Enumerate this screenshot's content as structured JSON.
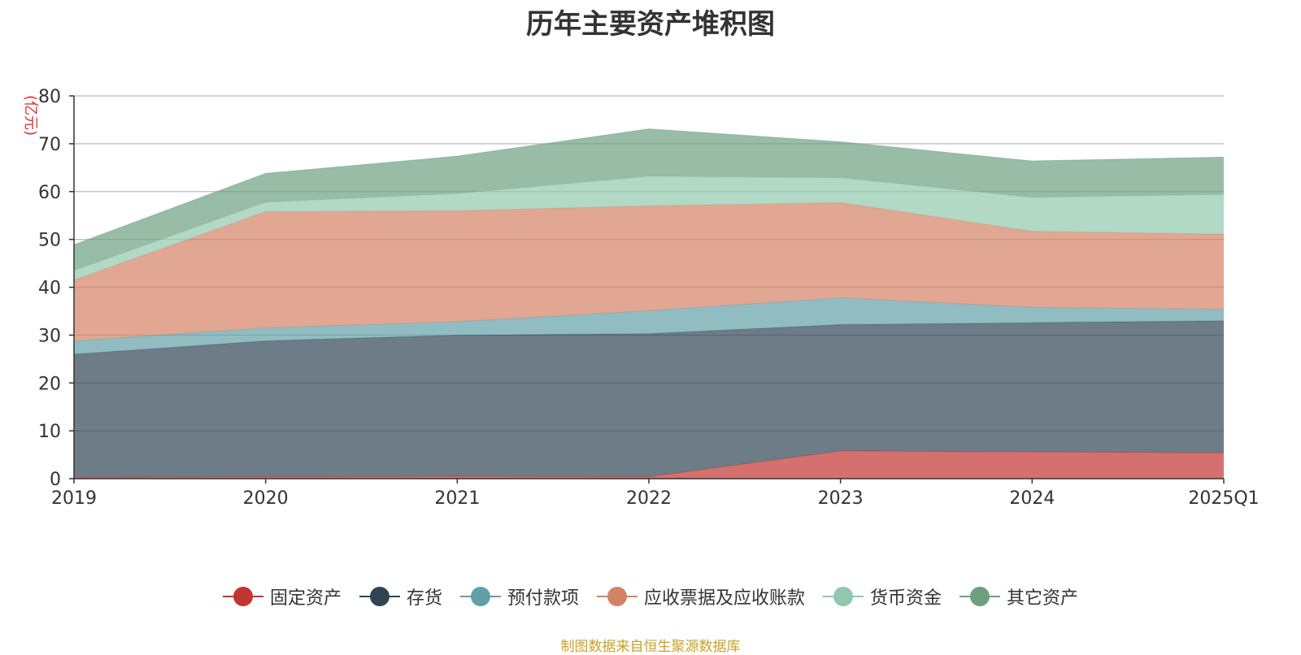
{
  "chart_data": {
    "type": "area",
    "stacked": true,
    "title": "历年主要资产堆积图",
    "ylabel": "(亿元)",
    "xlabel": "",
    "categories": [
      "2019",
      "2020",
      "2021",
      "2022",
      "2023",
      "2024",
      "2025Q1"
    ],
    "ylim": [
      0,
      80
    ],
    "yticks": [
      0,
      10,
      20,
      30,
      40,
      50,
      60,
      70,
      80
    ],
    "grid": true,
    "legend_position": "bottom",
    "series": [
      {
        "name": "固定资产",
        "color": "#c23531",
        "values": [
          0.3,
          0.4,
          0.5,
          0.4,
          5.8,
          5.6,
          5.4
        ]
      },
      {
        "name": "存货",
        "color": "#2f4554",
        "values": [
          25.7,
          28.4,
          29.5,
          29.9,
          26.4,
          27.0,
          27.6
        ]
      },
      {
        "name": "预付款项",
        "color": "#61a0a8",
        "values": [
          2.8,
          2.7,
          2.8,
          4.8,
          5.6,
          3.2,
          2.4
        ]
      },
      {
        "name": "应收票据及应收账款",
        "color": "#d48265",
        "values": [
          12.7,
          24.3,
          23.2,
          21.9,
          19.9,
          15.9,
          15.7
        ]
      },
      {
        "name": "货币资金",
        "color": "#91c7ae",
        "values": [
          2.0,
          2.0,
          3.6,
          6.2,
          5.2,
          7.1,
          8.3
        ]
      },
      {
        "name": "其它资产",
        "color": "#6e9f80",
        "values": [
          5.4,
          6.0,
          7.8,
          9.9,
          7.5,
          7.6,
          7.8
        ]
      }
    ]
  },
  "source_note": "制图数据来自恒生聚源数据库"
}
